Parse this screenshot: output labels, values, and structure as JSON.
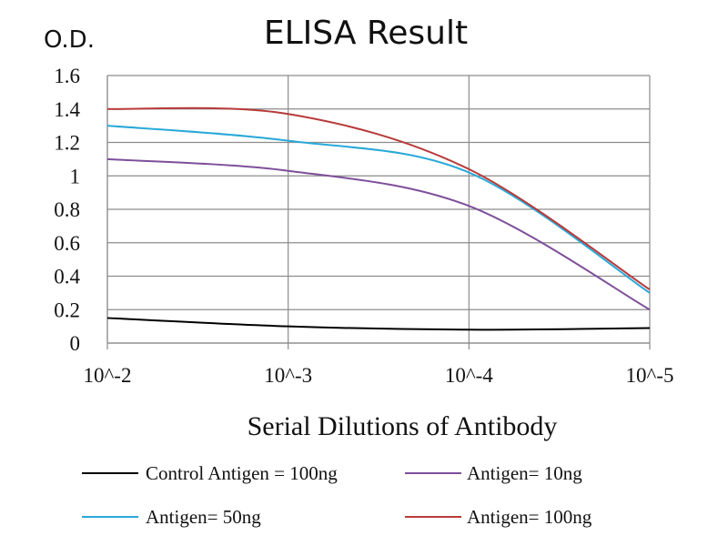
{
  "chart_data": {
    "type": "line",
    "title": "ELISA Result",
    "ylabel": "O.D.",
    "xlabel": "Serial Dilutions  of Antibody",
    "categories": [
      "10^-2",
      "10^-3",
      "10^-4",
      "10^-5"
    ],
    "y_ticks": [
      "0",
      "0.2",
      "0.4",
      "0.6",
      "0.8",
      "1",
      "1.2",
      "1.4",
      "1.6"
    ],
    "ylim": [
      0,
      1.6
    ],
    "grid": true,
    "legend_position": "bottom",
    "series": [
      {
        "name": "Control Antigen = 100ng",
        "color": "#000000",
        "values": [
          0.15,
          0.1,
          0.08,
          0.09
        ]
      },
      {
        "name": "Antigen= 10ng",
        "color": "#7e4f9a",
        "values": [
          1.1,
          1.03,
          0.82,
          0.2
        ]
      },
      {
        "name": "Antigen= 50ng",
        "color": "#2aa9d8",
        "values": [
          1.3,
          1.21,
          1.02,
          0.3
        ]
      },
      {
        "name": "Antigen= 100ng",
        "color": "#b83a3a",
        "values": [
          1.4,
          1.37,
          1.04,
          0.32
        ]
      }
    ]
  }
}
